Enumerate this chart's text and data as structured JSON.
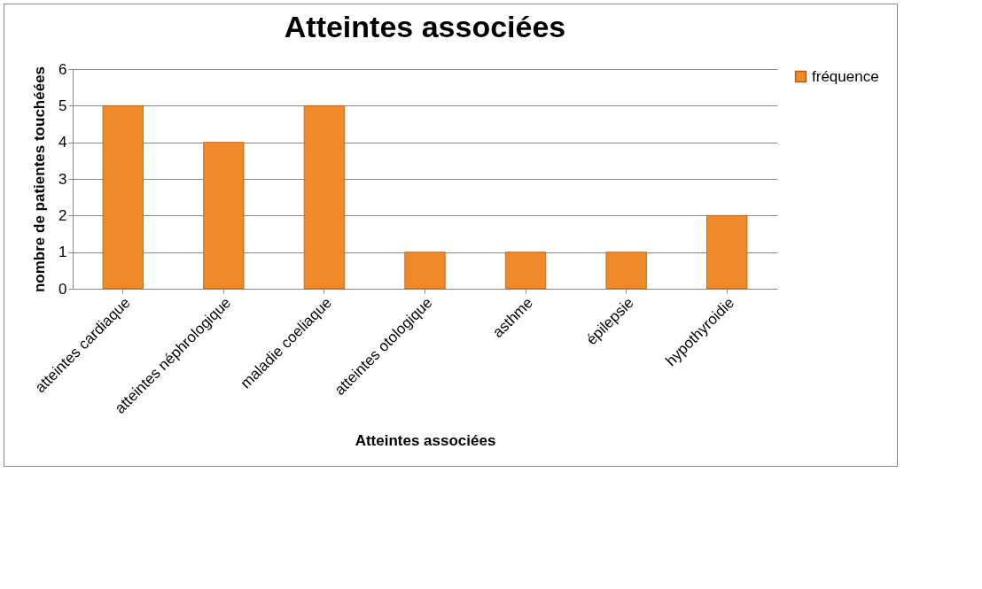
{
  "chart_data": {
    "type": "bar",
    "title": "Atteintes associées",
    "xlabel": "Atteintes associées",
    "ylabel": "nombre de patientes touchéées",
    "categories": [
      "atteintes cardiaque",
      "atteintes néphrologique",
      "maladie coeliaque",
      "atteintes otologique",
      "asthme",
      "épilepsie",
      "hypothyroidie"
    ],
    "series": [
      {
        "name": "fréquence",
        "color": "#f0892a",
        "values": [
          5,
          4,
          5,
          1,
          1,
          1,
          2
        ]
      }
    ],
    "ylim": [
      0,
      6
    ],
    "yticks": [
      0,
      1,
      2,
      3,
      4,
      5,
      6
    ],
    "grid": "y",
    "legend": "right"
  }
}
